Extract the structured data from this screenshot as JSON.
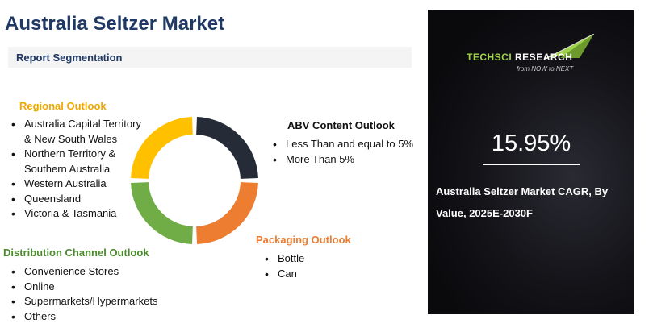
{
  "title": "Australia Seltzer Market",
  "subtitle": "Report Segmentation",
  "sections": {
    "regional": {
      "heading": "Regional Outlook",
      "items": [
        "Australia Capital Territory & New South Wales",
        "Northern Territory & Southern Australia",
        "Western Australia",
        "Queensland",
        "Victoria & Tasmania"
      ]
    },
    "distribution": {
      "heading": "Distribution Channel Outlook",
      "items": [
        "Convenience Stores",
        "Online",
        "Supermarkets/Hypermarkets",
        "Others"
      ]
    },
    "abv": {
      "heading": "ABV Content Outlook",
      "items": [
        "Less Than and equal to 5%",
        "More Than 5%"
      ]
    },
    "packaging": {
      "heading": "Packaging Outlook",
      "items": [
        "Bottle",
        "Can"
      ]
    }
  },
  "donut": {
    "segments": [
      {
        "key": "abv",
        "color": "#262c37",
        "fraction": 0.25
      },
      {
        "key": "packaging",
        "color": "#ed7d31",
        "fraction": 0.25
      },
      {
        "key": "distribution",
        "color": "#70ad47",
        "fraction": 0.25
      },
      {
        "key": "regional",
        "color": "#ffc000",
        "fraction": 0.25
      }
    ]
  },
  "panel": {
    "logo_part1": "TECHSCI",
    "logo_part2": "RESEARCH",
    "logo_tagline": "from NOW to NEXT",
    "cagr_value": "15.95%",
    "cagr_label_line1": "Australia Seltzer Market CAGR, By",
    "cagr_label_line2": "Value, 2025E-2030F"
  },
  "colors": {
    "title": "#1f3864",
    "regional": "#f0a800",
    "distribution": "#4a8b2c",
    "packaging": "#ed7d31",
    "panel_bg": "#0d0d12",
    "logo_green": "#9fd14a"
  }
}
